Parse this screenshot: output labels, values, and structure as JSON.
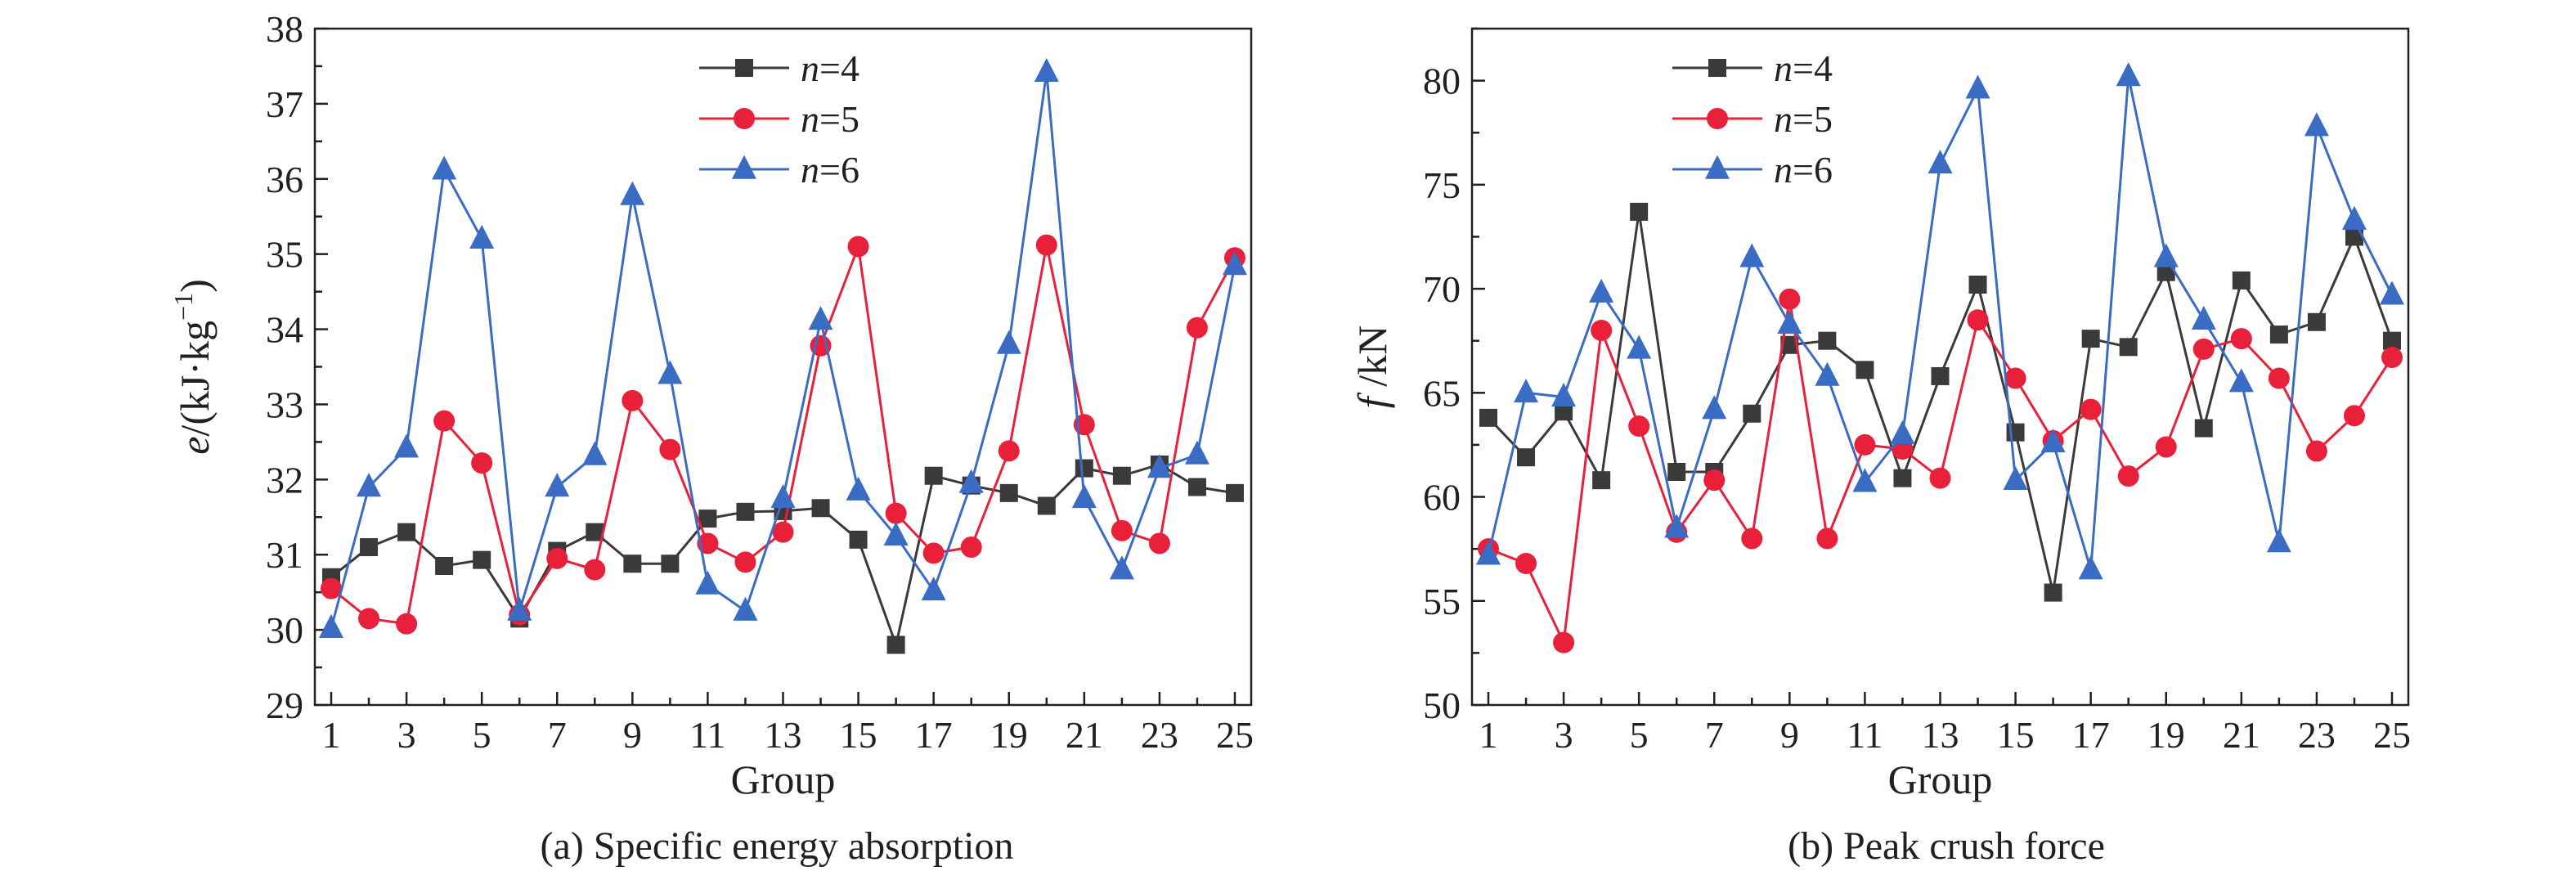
{
  "colors": {
    "n4": "#3a3a3a",
    "n5": "#e8203a",
    "n6": "#3a6cc4",
    "axis": "#231f20"
  },
  "chart_data": [
    {
      "type": "line",
      "caption": "(a) Specific energy absorption",
      "xlabel": "Group",
      "ylabel_var": "e",
      "ylabel_unit": "/(kJ·kg",
      "ylabel_exp": "−1",
      "ylabel_close": ")",
      "xlim": [
        1,
        25
      ],
      "ylim": [
        29,
        38
      ],
      "x_ticks": [
        1,
        3,
        5,
        7,
        9,
        11,
        13,
        15,
        17,
        19,
        21,
        23,
        25
      ],
      "y_ticks": [
        29,
        30,
        31,
        32,
        33,
        34,
        35,
        36,
        37,
        38
      ],
      "legend_position": "top-center",
      "x": [
        1,
        2,
        3,
        4,
        5,
        6,
        7,
        8,
        9,
        10,
        11,
        12,
        13,
        14,
        15,
        16,
        17,
        18,
        19,
        20,
        21,
        22,
        23,
        24,
        25
      ],
      "series": [
        {
          "legend_var": "n",
          "legend_eq": "=4",
          "marker": "square",
          "values": [
            30.7,
            31.1,
            31.3,
            30.85,
            30.93,
            30.15,
            31.05,
            31.3,
            30.88,
            30.88,
            31.48,
            31.57,
            31.58,
            31.62,
            31.2,
            29.8,
            32.05,
            31.92,
            31.82,
            31.65,
            32.15,
            32.05,
            32.2,
            31.9,
            31.82
          ]
        },
        {
          "legend_var": "n",
          "legend_eq": "=5",
          "marker": "circle",
          "values": [
            30.55,
            30.15,
            30.08,
            32.78,
            32.22,
            30.2,
            30.95,
            30.8,
            33.05,
            32.4,
            31.15,
            30.9,
            31.3,
            33.78,
            35.1,
            31.55,
            31.02,
            31.1,
            32.38,
            35.12,
            32.73,
            31.32,
            31.15,
            34.02,
            34.95
          ]
        },
        {
          "legend_var": "n",
          "legend_eq": "=6",
          "marker": "triangle",
          "values": [
            30.02,
            31.9,
            32.42,
            36.12,
            35.2,
            30.25,
            31.9,
            32.32,
            35.78,
            33.4,
            30.6,
            30.25,
            31.75,
            34.12,
            31.85,
            31.25,
            30.52,
            31.95,
            33.8,
            37.42,
            31.75,
            30.8,
            32.15,
            32.33,
            34.85
          ]
        }
      ]
    },
    {
      "type": "line",
      "caption": "(b) Peak crush force",
      "xlabel": "Group",
      "ylabel_var": "f",
      "ylabel_unit": " /kN",
      "xlim": [
        1,
        25
      ],
      "ylim": [
        50,
        82.5
      ],
      "x_ticks": [
        1,
        3,
        5,
        7,
        9,
        11,
        13,
        15,
        17,
        19,
        21,
        23,
        25
      ],
      "y_ticks": [
        50,
        55,
        60,
        65,
        70,
        75,
        80
      ],
      "legend_position": "top-left",
      "x": [
        1,
        2,
        3,
        4,
        5,
        6,
        7,
        8,
        9,
        10,
        11,
        12,
        13,
        14,
        15,
        16,
        17,
        18,
        19,
        20,
        21,
        22,
        23,
        24,
        25
      ],
      "series": [
        {
          "legend_var": "n",
          "legend_eq": "=4",
          "marker": "square",
          "values": [
            63.8,
            61.9,
            64.1,
            60.8,
            73.7,
            61.2,
            61.2,
            64.0,
            67.3,
            67.5,
            66.1,
            60.9,
            65.8,
            70.2,
            63.1,
            55.4,
            67.6,
            67.2,
            70.8,
            63.3,
            70.4,
            67.8,
            68.4,
            72.5,
            67.5
          ]
        },
        {
          "legend_var": "n",
          "legend_eq": "=5",
          "marker": "circle",
          "values": [
            57.5,
            56.8,
            53.0,
            68.0,
            63.4,
            58.3,
            60.8,
            58.0,
            69.5,
            58.0,
            62.5,
            62.3,
            60.9,
            68.5,
            65.7,
            62.7,
            64.2,
            61.0,
            62.4,
            67.1,
            67.6,
            65.7,
            62.2,
            63.9,
            66.7
          ]
        },
        {
          "legend_var": "n",
          "legend_eq": "=6",
          "marker": "triangle",
          "values": [
            57.2,
            65.0,
            64.8,
            69.8,
            67.1,
            58.5,
            64.2,
            71.5,
            68.3,
            65.8,
            60.7,
            63.0,
            76.0,
            79.6,
            60.8,
            62.6,
            56.5,
            80.2,
            71.5,
            68.5,
            65.5,
            57.8,
            77.8,
            73.3,
            69.7
          ]
        }
      ]
    }
  ]
}
